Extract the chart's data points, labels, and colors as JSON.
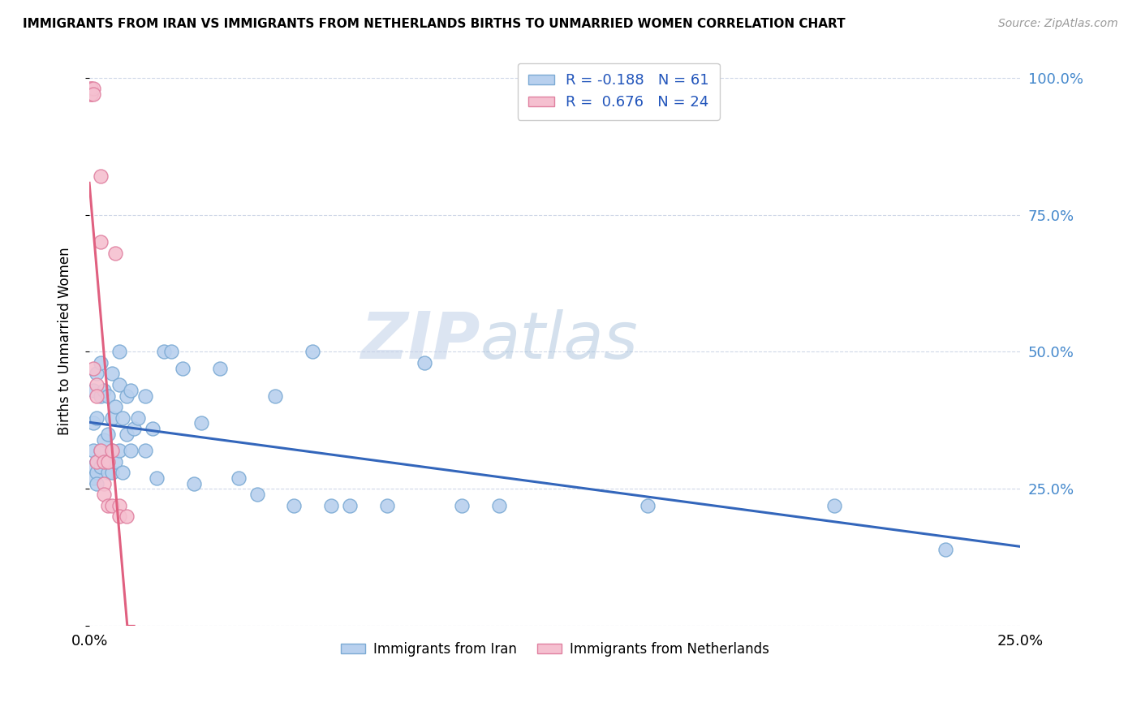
{
  "title": "IMMIGRANTS FROM IRAN VS IMMIGRANTS FROM NETHERLANDS BIRTHS TO UNMARRIED WOMEN CORRELATION CHART",
  "source": "Source: ZipAtlas.com",
  "ylabel": "Births to Unmarried Women",
  "xmin": 0.0,
  "xmax": 0.25,
  "ymin": 0.0,
  "ymax": 1.04,
  "yticks": [
    0.0,
    0.25,
    0.5,
    0.75,
    1.0
  ],
  "ytick_labels": [
    "",
    "25.0%",
    "50.0%",
    "75.0%",
    "100.0%"
  ],
  "xticks": [
    0.0,
    0.05,
    0.1,
    0.15,
    0.2,
    0.25
  ],
  "xtick_labels": [
    "0.0%",
    "",
    "",
    "",
    "",
    "25.0%"
  ],
  "iran_color": "#b8d0ee",
  "iran_edge": "#7baad4",
  "netherlands_color": "#f5c0d0",
  "netherlands_edge": "#e080a0",
  "trendline_iran_color": "#3366bb",
  "trendline_netherlands_color": "#e06080",
  "watermark_zip": "ZIP",
  "watermark_atlas": "atlas",
  "iran_x": [
    0.001,
    0.001,
    0.001,
    0.001,
    0.001,
    0.002,
    0.002,
    0.002,
    0.002,
    0.002,
    0.003,
    0.003,
    0.003,
    0.003,
    0.004,
    0.004,
    0.004,
    0.005,
    0.005,
    0.005,
    0.006,
    0.006,
    0.006,
    0.006,
    0.007,
    0.007,
    0.008,
    0.008,
    0.008,
    0.009,
    0.009,
    0.01,
    0.01,
    0.011,
    0.011,
    0.012,
    0.013,
    0.015,
    0.015,
    0.017,
    0.018,
    0.02,
    0.022,
    0.025,
    0.028,
    0.03,
    0.035,
    0.04,
    0.045,
    0.05,
    0.055,
    0.06,
    0.065,
    0.07,
    0.08,
    0.09,
    0.1,
    0.11,
    0.15,
    0.2,
    0.23
  ],
  "iran_y": [
    0.43,
    0.37,
    0.32,
    0.29,
    0.27,
    0.46,
    0.38,
    0.3,
    0.28,
    0.26,
    0.48,
    0.42,
    0.32,
    0.29,
    0.43,
    0.34,
    0.3,
    0.42,
    0.35,
    0.28,
    0.46,
    0.38,
    0.32,
    0.28,
    0.4,
    0.3,
    0.5,
    0.44,
    0.32,
    0.38,
    0.28,
    0.42,
    0.35,
    0.43,
    0.32,
    0.36,
    0.38,
    0.42,
    0.32,
    0.36,
    0.27,
    0.5,
    0.5,
    0.47,
    0.26,
    0.37,
    0.47,
    0.27,
    0.24,
    0.42,
    0.22,
    0.5,
    0.22,
    0.22,
    0.22,
    0.48,
    0.22,
    0.22,
    0.22,
    0.22,
    0.14
  ],
  "netherlands_x": [
    0.0005,
    0.0005,
    0.0005,
    0.0005,
    0.001,
    0.001,
    0.001,
    0.002,
    0.002,
    0.002,
    0.003,
    0.003,
    0.003,
    0.004,
    0.004,
    0.004,
    0.005,
    0.005,
    0.006,
    0.006,
    0.007,
    0.008,
    0.008,
    0.01
  ],
  "netherlands_y": [
    0.98,
    0.98,
    0.97,
    0.97,
    0.98,
    0.97,
    0.47,
    0.44,
    0.42,
    0.3,
    0.82,
    0.7,
    0.32,
    0.3,
    0.26,
    0.24,
    0.3,
    0.22,
    0.22,
    0.32,
    0.68,
    0.22,
    0.2,
    0.2
  ],
  "neth_trendline_xstart": 0.0,
  "neth_trendline_xend": 0.012,
  "iran_trendline_xstart": 0.0,
  "iran_trendline_xend": 0.25
}
